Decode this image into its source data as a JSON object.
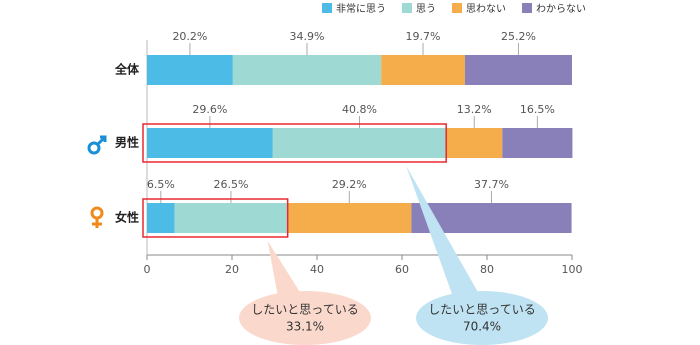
{
  "chart_data": {
    "type": "stacked-bar-horizontal",
    "categories": [
      "全体",
      "男性",
      "女性"
    ],
    "series": [
      {
        "name": "非常に思う",
        "color": "#4cbbe6",
        "values": [
          20.2,
          29.6,
          6.5
        ],
        "value_labels": [
          "20.2%",
          "29.6%",
          "6.5%"
        ]
      },
      {
        "name": "思う",
        "color": "#9fd9d3",
        "values": [
          34.9,
          40.8,
          26.5
        ],
        "value_labels": [
          "34.9%",
          "40.8%",
          "26.5%"
        ]
      },
      {
        "name": "思わない",
        "color": "#f5ad4b",
        "values": [
          19.7,
          13.2,
          29.2
        ],
        "value_labels": [
          "19.7%",
          "13.2%",
          "29.2%"
        ]
      },
      {
        "name": "わからない",
        "color": "#8a80b9",
        "values": [
          25.2,
          16.5,
          37.7
        ],
        "value_labels": [
          "25.2%",
          "16.5%",
          "37.7%"
        ]
      }
    ],
    "xlim": [
      0,
      100
    ],
    "xticks": [
      0,
      20,
      40,
      60,
      80,
      100
    ],
    "annotations": [
      {
        "category": 2,
        "text": "したいと思っている",
        "value": 33.1,
        "label": "33.1%",
        "color": "#fad9cc"
      },
      {
        "category": 1,
        "text": "したいと思っている",
        "value": 70.4,
        "label": "70.4%",
        "color": "#bfe3f3"
      }
    ]
  }
}
